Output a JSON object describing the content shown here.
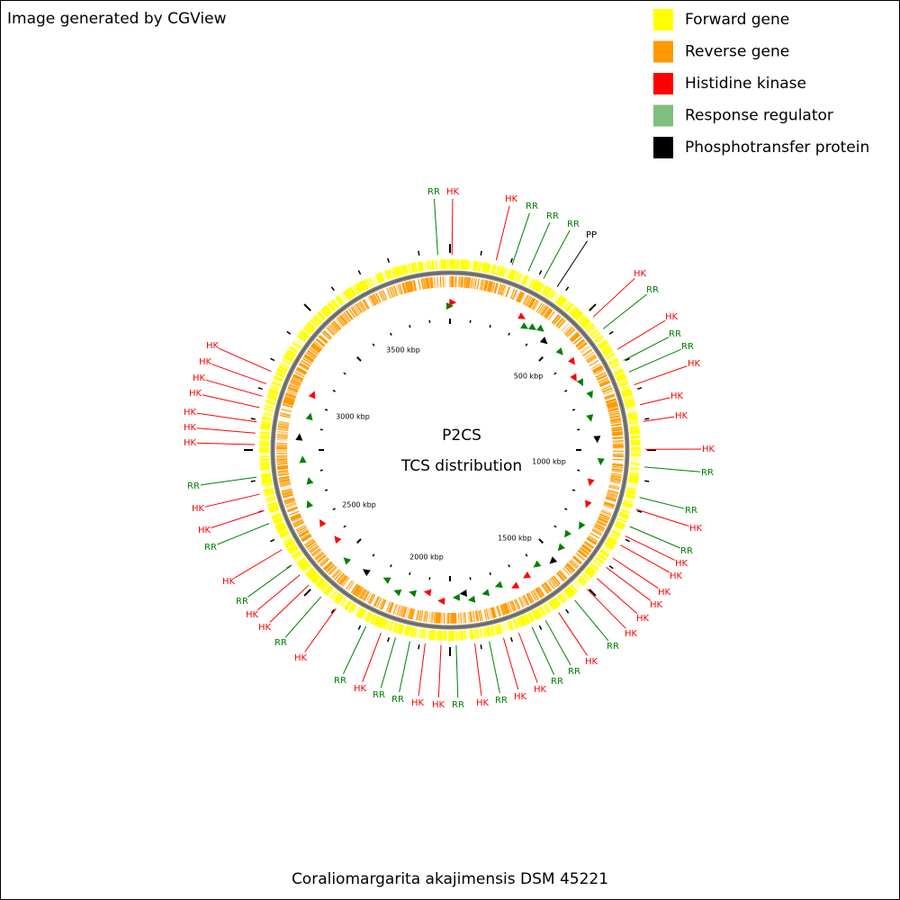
{
  "header": {
    "credit": "Image generated by CGView"
  },
  "legend": [
    {
      "label": "Forward gene",
      "color": "#ffff00"
    },
    {
      "label": "Reverse gene",
      "color": "#ff9900"
    },
    {
      "label": "Histidine kinase",
      "color": "#ff0000"
    },
    {
      "label": "Response regulator",
      "color": "#7fbf7f"
    },
    {
      "label": "Phosphotransfer protein",
      "color": "#000000"
    }
  ],
  "center": {
    "title": "P2CS",
    "subtitle": "TCS distribution"
  },
  "scale_labels": [
    "500 kbp",
    "1000 kbp",
    "1500 kbp",
    "2000 kbp",
    "2500 kbp",
    "3000 kbp",
    "3500 kbp"
  ],
  "features": [
    {
      "label": "RR",
      "color": "#008000"
    },
    {
      "label": "HK",
      "color": "#ff0000"
    },
    {
      "label": "HK",
      "color": "#ff0000"
    },
    {
      "label": "RR",
      "color": "#008000"
    },
    {
      "label": "RR",
      "color": "#008000"
    },
    {
      "label": "RR",
      "color": "#008000"
    },
    {
      "label": "PP",
      "color": "#000000"
    },
    {
      "label": "HK",
      "color": "#ff0000"
    },
    {
      "label": "RR",
      "color": "#008000"
    },
    {
      "label": "HK",
      "color": "#ff0000"
    },
    {
      "label": "RR",
      "color": "#008000"
    },
    {
      "label": "RR",
      "color": "#008000"
    },
    {
      "label": "HK",
      "color": "#ff0000"
    },
    {
      "label": "HK",
      "color": "#ff0000"
    },
    {
      "label": "HK",
      "color": "#ff0000"
    },
    {
      "label": "HK",
      "color": "#ff0000"
    },
    {
      "label": "RR",
      "color": "#008000"
    },
    {
      "label": "RR",
      "color": "#008000"
    },
    {
      "label": "HK",
      "color": "#ff0000"
    },
    {
      "label": "RR",
      "color": "#008000"
    },
    {
      "label": "HK",
      "color": "#ff0000"
    },
    {
      "label": "HK",
      "color": "#ff0000"
    },
    {
      "label": "HK",
      "color": "#ff0000"
    },
    {
      "label": "HK",
      "color": "#ff0000"
    },
    {
      "label": "HK",
      "color": "#ff0000"
    },
    {
      "label": "HK",
      "color": "#ff0000"
    },
    {
      "label": "RR",
      "color": "#008000"
    },
    {
      "label": "HK",
      "color": "#ff0000"
    },
    {
      "label": "RR",
      "color": "#008000"
    },
    {
      "label": "RR",
      "color": "#008000"
    },
    {
      "label": "HK",
      "color": "#ff0000"
    },
    {
      "label": "HK",
      "color": "#ff0000"
    },
    {
      "label": "RR",
      "color": "#008000"
    },
    {
      "label": "HK",
      "color": "#ff0000"
    },
    {
      "label": "RR",
      "color": "#008000"
    },
    {
      "label": "HK",
      "color": "#ff0000"
    },
    {
      "label": "HK",
      "color": "#ff0000"
    },
    {
      "label": "RR",
      "color": "#008000"
    },
    {
      "label": "RR",
      "color": "#008000"
    },
    {
      "label": "HK",
      "color": "#ff0000"
    },
    {
      "label": "RR",
      "color": "#008000"
    },
    {
      "label": "HK",
      "color": "#ff0000"
    },
    {
      "label": "RR",
      "color": "#008000"
    },
    {
      "label": "HK",
      "color": "#ff0000"
    },
    {
      "label": "HK",
      "color": "#ff0000"
    },
    {
      "label": "RR",
      "color": "#008000"
    },
    {
      "label": "HK",
      "color": "#ff0000"
    },
    {
      "label": "RR",
      "color": "#008000"
    },
    {
      "label": "HK",
      "color": "#ff0000"
    },
    {
      "label": "HK",
      "color": "#ff0000"
    },
    {
      "label": "RR",
      "color": "#008000"
    },
    {
      "label": "HK",
      "color": "#ff0000"
    },
    {
      "label": "HK",
      "color": "#ff0000"
    },
    {
      "label": "HK",
      "color": "#ff0000"
    },
    {
      "label": "HK",
      "color": "#ff0000"
    },
    {
      "label": "HK",
      "color": "#ff0000"
    },
    {
      "label": "HK",
      "color": "#ff0000"
    },
    {
      "label": "HK",
      "color": "#ff0000"
    }
  ],
  "footer": {
    "organism": "Coraliomargarita akajimensis DSM 45221"
  }
}
